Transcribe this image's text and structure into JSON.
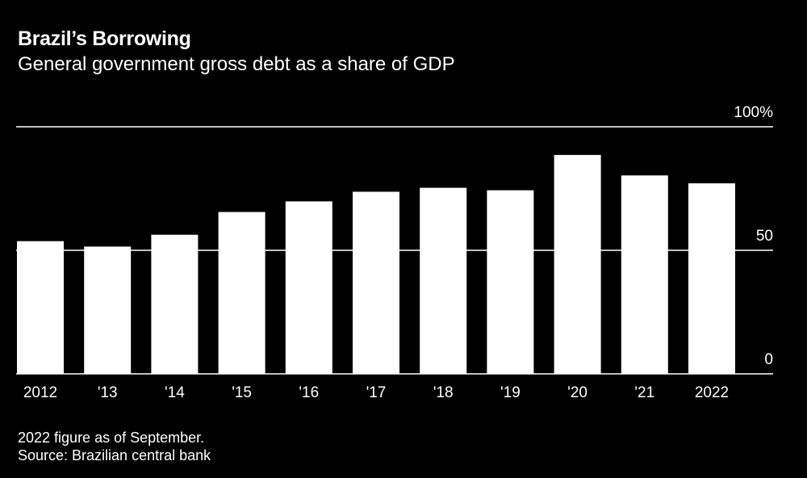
{
  "chart_data": {
    "type": "bar",
    "title": "Brazil’s Borrowing",
    "subtitle": "General government gross debt as a share of GDP",
    "categories": [
      "2012",
      "'13",
      "'14",
      "'15",
      "'16",
      "'17",
      "'18",
      "'19",
      "'20",
      "'21",
      "2022"
    ],
    "values": [
      53.7,
      51.5,
      56.3,
      65.5,
      69.8,
      73.7,
      75.3,
      74.3,
      88.6,
      80.3,
      77.1
    ],
    "ylim": [
      0,
      100
    ],
    "yticks": [
      {
        "value": 0,
        "label": "0"
      },
      {
        "value": 50,
        "label": "50"
      },
      {
        "value": 100,
        "label": "100%"
      }
    ],
    "xlabel": "",
    "ylabel": "",
    "grid": true,
    "bar_color": "#ffffff",
    "background_color": "#000000"
  },
  "footnote": {
    "note": "2022 figure as of September.",
    "source": "Source: Brazilian central bank"
  }
}
